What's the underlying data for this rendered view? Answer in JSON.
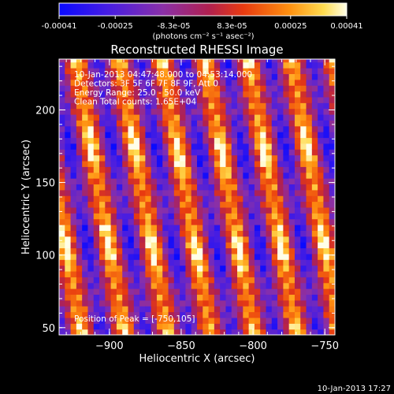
{
  "chart_data": {
    "type": "heatmap",
    "title": "Reconstructed RHESSI Image",
    "xlabel": "Heliocentric X (arcsec)",
    "ylabel": "Heliocentric Y (arcsec)",
    "xlim": [
      -935,
      -743
    ],
    "ylim": [
      45,
      235
    ],
    "x_ticks": [
      -900,
      -850,
      -800,
      -750
    ],
    "y_ticks": [
      50,
      100,
      150,
      200
    ],
    "colorbar": {
      "ticks": [
        "-0.00041",
        "-0.00025",
        "-8.3e-05",
        "8.3e-05",
        "0.00025",
        "0.00041"
      ],
      "range": [
        -0.00041,
        0.00041
      ],
      "units_label": "(photons cm⁻² s⁻¹ asec⁻²)",
      "colors": [
        "#0a0aff",
        "#5020c8",
        "#8a30a8",
        "#d03020",
        "#ff7000",
        "#ffd040",
        "#ffffe0"
      ]
    },
    "annotations": [
      "10-Jan-2013 04:47:48.000 to 04:53:14.000",
      "Detectors: 3F 5F 6F 7F 8F 9F, Att 0",
      "Energy Range: 25.0 - 50.0 keV",
      "Clean    Total counts: 1.65E+04"
    ],
    "peak_label": "Position of Peak = [-750,105]",
    "peak": [
      -750,
      105
    ],
    "pattern": {
      "description_free": true,
      "stripe_period_arcsec": 30,
      "stripe_tilt_ratio": 0.18,
      "grid_step_arcsec": 4
    }
  },
  "footer": {
    "timestamp": "10-Jan-2013 17:27"
  }
}
